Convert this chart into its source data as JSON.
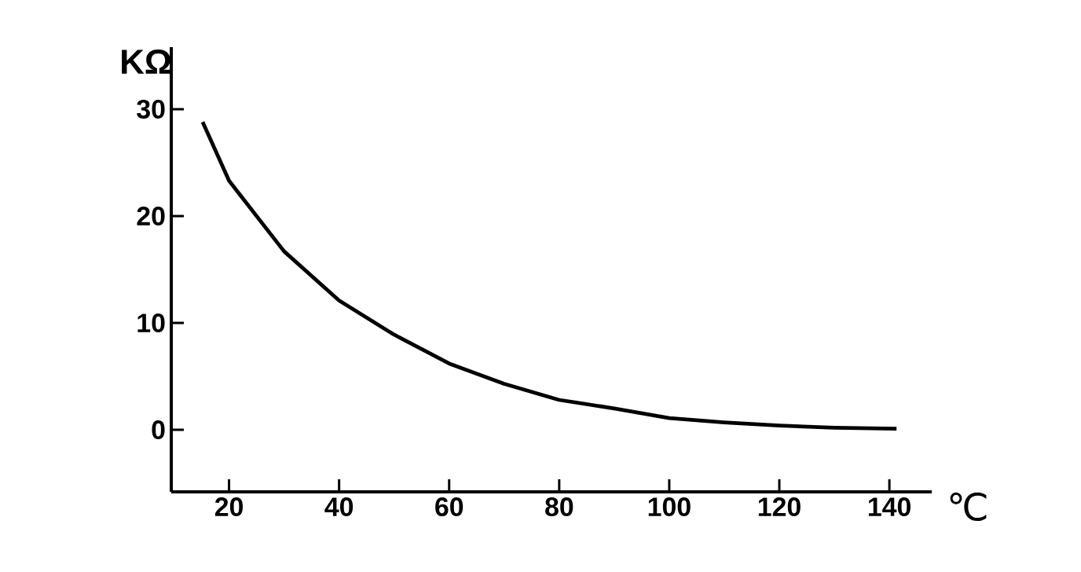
{
  "chart_data": {
    "type": "line",
    "xlabel": "℃",
    "ylabel": "KΩ",
    "x": [
      15.2,
      20,
      30,
      40,
      50,
      60,
      70,
      80,
      90,
      100,
      110,
      120,
      130,
      141.3
    ],
    "values": [
      28.8,
      23.3,
      16.7,
      12.1,
      8.9,
      6.2,
      4.3,
      2.8,
      2.0,
      1.1,
      0.7,
      0.4,
      0.2,
      0.1
    ],
    "color": "#000000",
    "xlim": [
      9.5,
      147.7
    ],
    "ylim": [
      -5.8,
      35.8
    ],
    "xticks": [
      20,
      40,
      60,
      80,
      100,
      120,
      140
    ],
    "yticks": [
      0,
      10,
      20,
      30
    ],
    "grid": false
  }
}
